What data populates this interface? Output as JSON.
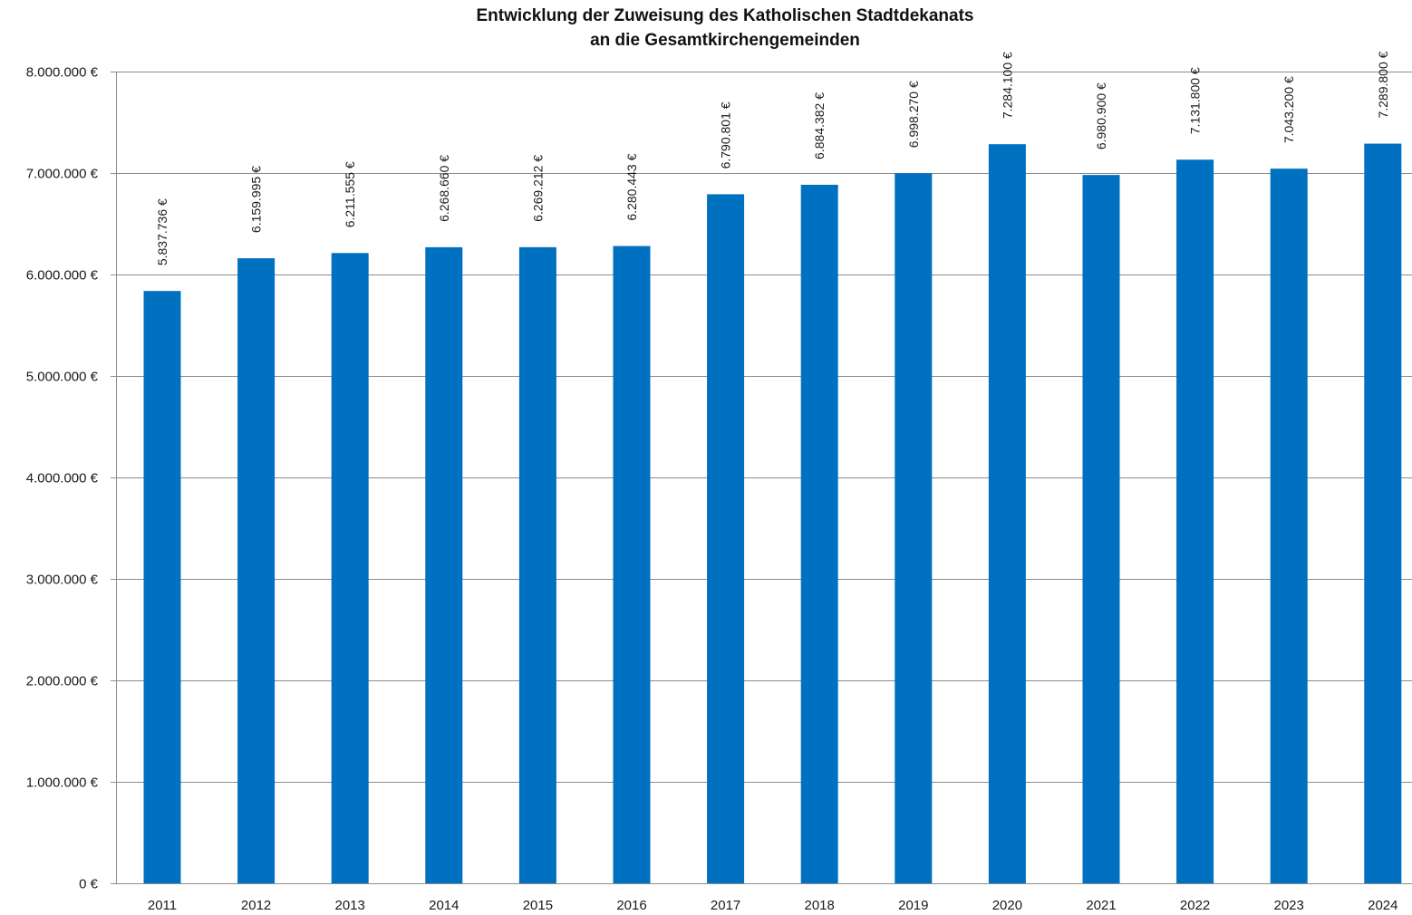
{
  "chart_data": {
    "type": "bar",
    "title_lines": [
      "Entwicklung der Zuweisung  des Katholischen Stadtdekanats",
      "an die Gesamtkirchengemeinden"
    ],
    "xlabel": "",
    "ylabel": "",
    "categories": [
      "2011",
      "2012",
      "2013",
      "2014",
      "2015",
      "2016",
      "2017",
      "2018",
      "2019",
      "2020",
      "2021",
      "2022",
      "2023",
      "2024"
    ],
    "values": [
      5837736,
      6159995,
      6211555,
      6268660,
      6269212,
      6280443,
      6790801,
      6884382,
      6998270,
      7284100,
      6980900,
      7131800,
      7043200,
      7289800
    ],
    "data_labels": [
      "5.837.736 €",
      "6.159.995 €",
      "6.211.555 €",
      "6.268.660 €",
      "6.269.212 €",
      "6.280.443 €",
      "6.790.801 €",
      "6.884.382 €",
      "6.998.270 €",
      "7.284.100 €",
      "6.980.900 €",
      "7.131.800 €",
      "7.043.200 €",
      "7.289.800 €"
    ],
    "ylim": [
      0,
      8000000
    ],
    "y_ticks": [
      0,
      1000000,
      2000000,
      3000000,
      4000000,
      5000000,
      6000000,
      7000000,
      8000000
    ],
    "y_tick_labels": [
      "0 €",
      "1.000.000 €",
      "2.000.000 €",
      "3.000.000 €",
      "4.000.000 €",
      "5.000.000 €",
      "6.000.000 €",
      "7.000.000 €",
      "8.000.000 €"
    ],
    "grid": true,
    "legend": "none",
    "bar_color": "#0070C0",
    "grid_color": "#8C8C8C"
  }
}
